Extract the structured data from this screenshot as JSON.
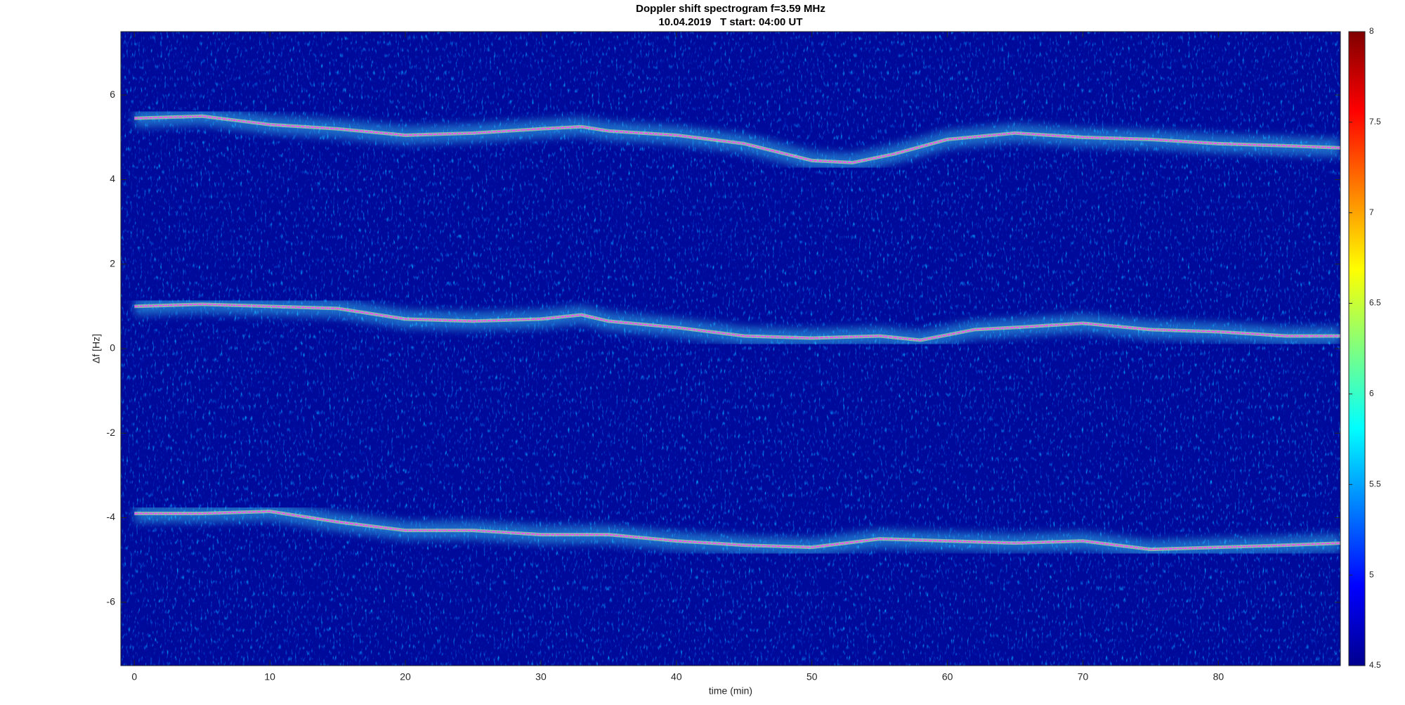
{
  "chart_data": {
    "type": "line",
    "title": "Doppler shift spectrogram f=3.59 MHz",
    "subtitle": "10.04.2019   T start: 04:00 UT",
    "x_label": "time (min)",
    "y_label": "Δf [Hz]",
    "xlim": [
      -1,
      89
    ],
    "xticks": [
      0,
      10,
      20,
      30,
      40,
      50,
      60,
      70,
      80
    ],
    "ylim": [
      -7.5,
      7.5
    ],
    "yticks": [
      -6,
      -4,
      -2,
      0,
      2,
      4,
      6
    ],
    "clim": [
      4.5,
      8
    ],
    "cticks": [
      4.5,
      5,
      5.5,
      6,
      6.5,
      7,
      7.5,
      8
    ],
    "series": [
      {
        "color": "#ff40ff",
        "x": [
          0,
          5,
          10,
          15,
          20,
          25,
          30,
          33,
          35,
          40,
          45,
          50,
          53,
          56,
          60,
          65,
          70,
          75,
          80,
          85,
          89
        ],
        "values": [
          5.45,
          5.5,
          5.3,
          5.2,
          5.05,
          5.1,
          5.2,
          5.25,
          5.15,
          5.05,
          4.85,
          4.45,
          4.4,
          4.6,
          4.95,
          5.1,
          5.0,
          4.95,
          4.85,
          4.8,
          4.75
        ]
      },
      {
        "color": "#ff40ff",
        "x": [
          0,
          5,
          10,
          15,
          20,
          25,
          30,
          33,
          35,
          40,
          45,
          50,
          55,
          58,
          62,
          65,
          70,
          75,
          80,
          85,
          89
        ],
        "values": [
          1.0,
          1.05,
          1.0,
          0.95,
          0.7,
          0.65,
          0.7,
          0.8,
          0.65,
          0.5,
          0.3,
          0.25,
          0.3,
          0.2,
          0.45,
          0.5,
          0.6,
          0.45,
          0.4,
          0.3,
          0.3
        ]
      },
      {
        "color": "#ff40ff",
        "x": [
          0,
          5,
          10,
          15,
          20,
          25,
          30,
          35,
          40,
          45,
          50,
          55,
          60,
          65,
          70,
          75,
          80,
          85,
          89
        ],
        "values": [
          -3.9,
          -3.9,
          -3.85,
          -4.1,
          -4.3,
          -4.3,
          -4.4,
          -4.4,
          -4.55,
          -4.65,
          -4.7,
          -4.5,
          -4.55,
          -4.6,
          -4.55,
          -4.75,
          -4.7,
          -4.65,
          -4.6
        ]
      }
    ]
  }
}
